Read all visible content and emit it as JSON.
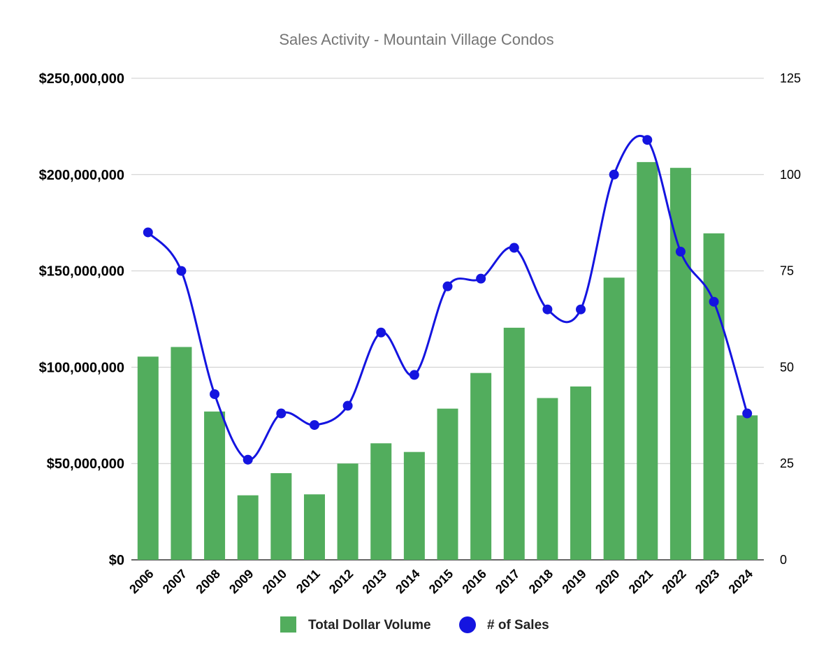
{
  "chart_data": {
    "type": "bar",
    "title": "Sales Activity - Mountain Village Condos",
    "categories": [
      "2006",
      "2007",
      "2008",
      "2009",
      "2010",
      "2011",
      "2012",
      "2013",
      "2014",
      "2015",
      "2016",
      "2017",
      "2018",
      "2019",
      "2020",
      "2021",
      "2022",
      "2023",
      "2024"
    ],
    "series": [
      {
        "name": "Total Dollar Volume",
        "type": "bar",
        "axis": "left",
        "color": "#52ad5d",
        "values": [
          105500000,
          110500000,
          77000000,
          33500000,
          45000000,
          34000000,
          50000000,
          60500000,
          56000000,
          78500000,
          97000000,
          120500000,
          84000000,
          90000000,
          146500000,
          206500000,
          203500000,
          169500000,
          75000000
        ]
      },
      {
        "name": "# of Sales",
        "type": "line",
        "axis": "right",
        "color": "#1414e0",
        "smooth": true,
        "values": [
          85,
          75,
          43,
          26,
          38,
          35,
          40,
          59,
          48,
          71,
          73,
          81,
          65,
          65,
          100,
          109,
          80,
          67,
          38
        ]
      }
    ],
    "yaxis_left": {
      "min": 0,
      "max": 250000000,
      "ticks": [
        "$0",
        "$50,000,000",
        "$100,000,000",
        "$150,000,000",
        "$200,000,000",
        "$250,000,000"
      ]
    },
    "yaxis_right": {
      "min": 0,
      "max": 125,
      "ticks": [
        "0",
        "25",
        "50",
        "75",
        "100",
        "125"
      ]
    },
    "grid": true,
    "legend": {
      "placement": "bottom",
      "items": [
        "Total Dollar Volume",
        "# of Sales"
      ]
    }
  }
}
